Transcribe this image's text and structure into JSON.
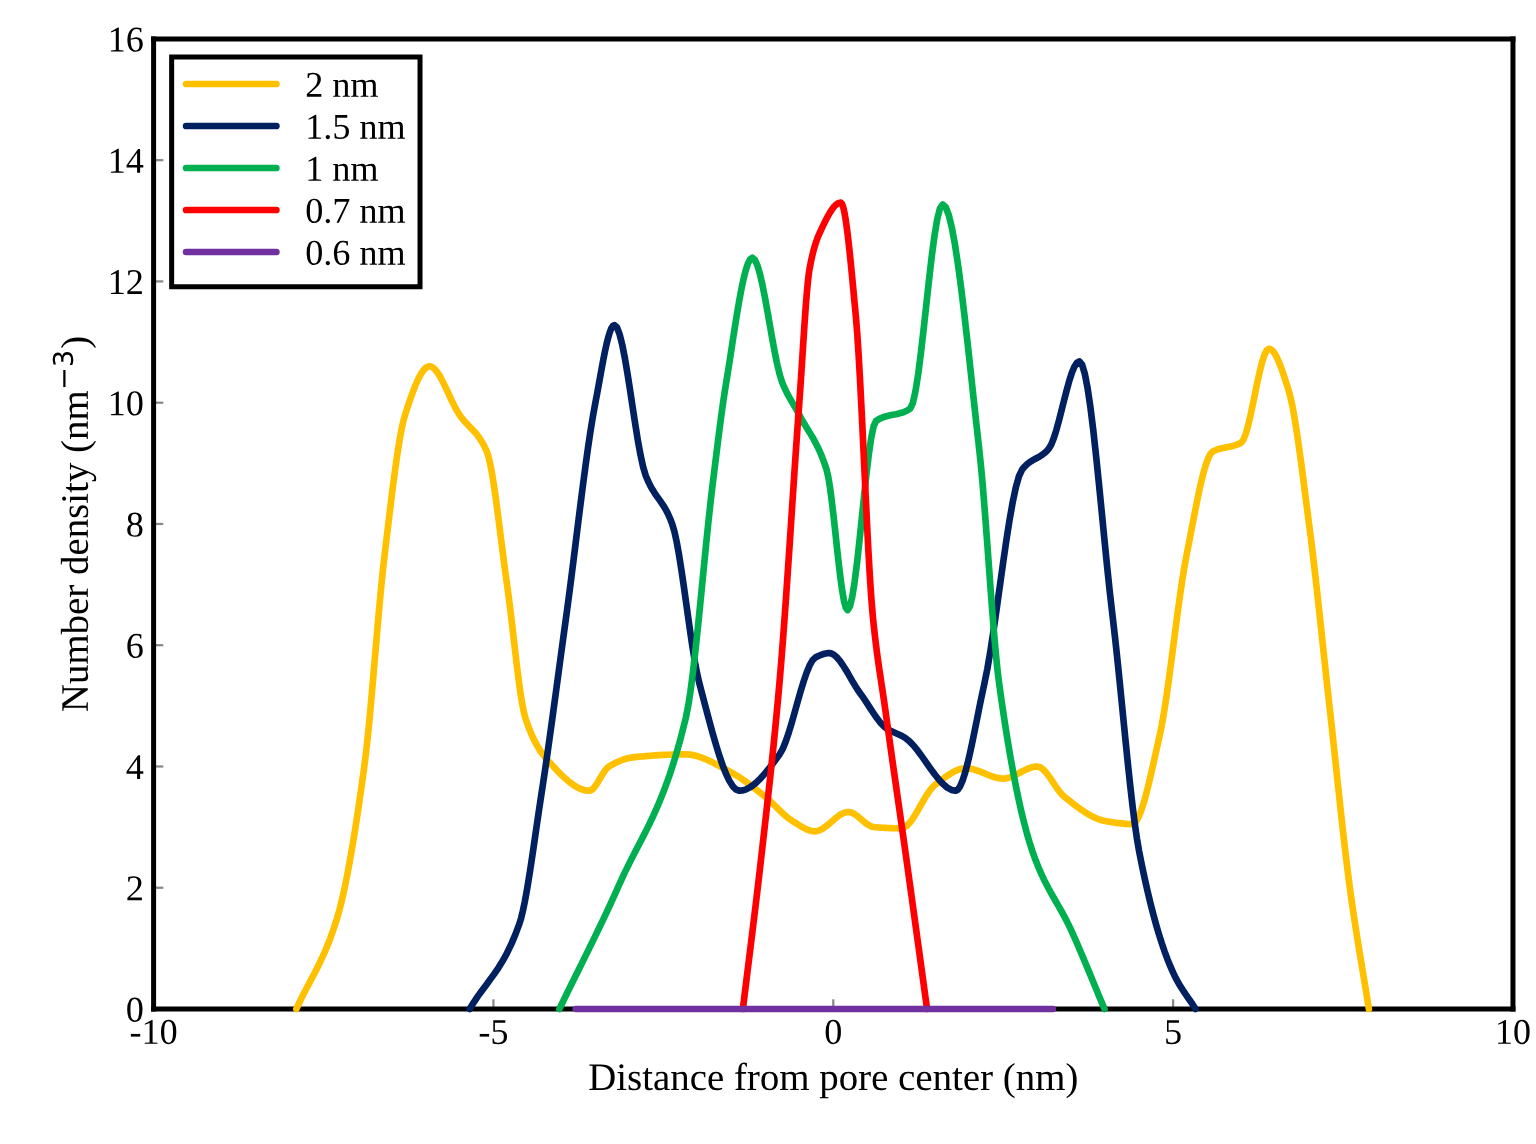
{
  "chart_data": {
    "type": "line",
    "xlabel": "Distance from pore center (nm)",
    "ylabel": "Number density (nm$^{−3}$)",
    "xlim": [
      -10,
      10
    ],
    "ylim": [
      0,
      16
    ],
    "xticks": [
      -10,
      -5,
      0,
      5,
      10
    ],
    "yticks": [
      0,
      2,
      4,
      6,
      8,
      10,
      12,
      14,
      16
    ],
    "grid": false,
    "legend": "top left",
    "marker": "none",
    "line_style": "solid",
    "series": [
      {
        "name": "2 nm",
        "color": "#ffc000",
        "x": [
          -7.9,
          -7.3,
          -6.9,
          -6.6,
          -6.3,
          -5.94,
          -5.5,
          -5.1,
          -4.8,
          -4.53,
          -4.2,
          -3.59,
          -3.3,
          -2.95,
          -2.17,
          -1.5,
          -1,
          -0.6,
          -0.27,
          0.22,
          0.6,
          1.0,
          1.5,
          1.95,
          2.5,
          3.0,
          3.4,
          4.0,
          4.4,
          4.8,
          5.2,
          5.58,
          6.0,
          6.41,
          6.7,
          7.0,
          7.3,
          7.6,
          7.88
        ],
        "values": [
          0,
          1.5,
          4,
          7.5,
          9.8,
          10.6,
          9.8,
          9.2,
          7,
          4.8,
          4.1,
          3.6,
          4.0,
          4.15,
          4.2,
          3.9,
          3.5,
          3.1,
          2.93,
          3.25,
          3.0,
          2.98,
          3.7,
          3.97,
          3.8,
          4.0,
          3.5,
          3.1,
          3.05,
          4.5,
          7.5,
          9.19,
          9.34,
          10.89,
          10.2,
          8,
          5,
          2,
          0
        ]
      },
      {
        "name": "1.5 nm",
        "color": "#002060",
        "x": [
          -5.35,
          -4.62,
          -4.3,
          -3.93,
          -3.5,
          -3.22,
          -2.76,
          -2.37,
          -1.97,
          -1.38,
          -0.79,
          -0.26,
          -0.06,
          0.4,
          0.77,
          1.06,
          1.8,
          2.22,
          2.78,
          3.17,
          3.62,
          4.11,
          4.5,
          5.0,
          5.33
        ],
        "values": [
          0,
          1.4,
          3.5,
          6.47,
          10.0,
          11.28,
          8.8,
          8.0,
          5.37,
          3.6,
          4.2,
          5.8,
          5.87,
          5.2,
          4.64,
          4.47,
          3.6,
          5.35,
          8.9,
          9.24,
          10.68,
          6.47,
          2.6,
          0.6,
          0
        ]
      },
      {
        "name": "1 nm",
        "color": "#00b050",
        "x": [
          -4.03,
          -3.15,
          -2.17,
          -1.77,
          -1.58,
          -1.19,
          -0.75,
          -0.5,
          -0.1,
          0.21,
          0.63,
          1.13,
          1.61,
          2.15,
          2.44,
          2.93,
          3.5,
          3.99
        ],
        "values": [
          0,
          2.05,
          4.8,
          8.7,
          10.3,
          12.39,
          10.33,
          9.8,
          8.9,
          6.58,
          9.7,
          9.9,
          13.27,
          9.2,
          5.37,
          2.6,
          1.3,
          0
        ]
      },
      {
        "name": "0.7 nm",
        "color": "#ff0000",
        "x": [
          -1.33,
          -1.06,
          -0.79,
          -0.5,
          -0.35,
          -0.2,
          0.11,
          0.33,
          0.58,
          0.77,
          1.06,
          1.38
        ],
        "values": [
          0,
          2.5,
          5.4,
          10.0,
          12.2,
          12.8,
          13.3,
          11.45,
          6.5,
          4.9,
          2.6,
          0
        ]
      },
      {
        "name": "0.6 nm",
        "color": "#7030a0",
        "x": [
          -3.79,
          3.23
        ],
        "values": [
          0,
          0
        ]
      }
    ]
  }
}
